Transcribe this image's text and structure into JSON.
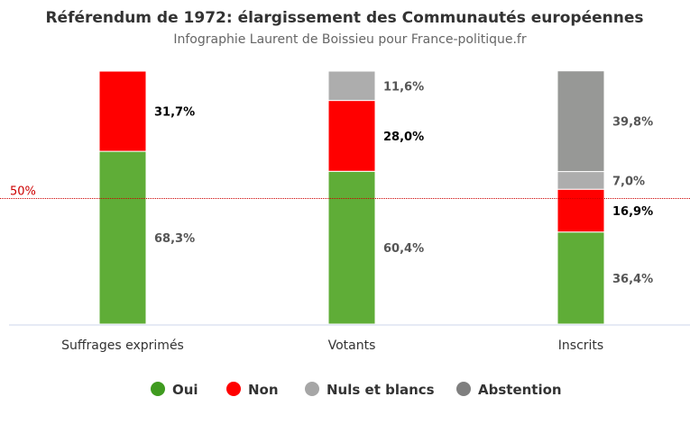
{
  "chart_data": {
    "type": "bar",
    "stacked": true,
    "title": "Référendum de 1972: élargissement des Communautés européennes",
    "subtitle": "Infographie Laurent de Boissieu pour France-politique.fr",
    "categories": [
      "Suffrages exprimés",
      "Votants",
      "Inscrits"
    ],
    "series": [
      {
        "name": "Oui",
        "color": "#5fad37",
        "legend_color": "#3f9b1f",
        "label_color": "#555555",
        "values": [
          68.3,
          60.4,
          36.4
        ],
        "labels": [
          "68,3%",
          "60,4%",
          "36,4%"
        ]
      },
      {
        "name": "Non",
        "color": "#ff0000",
        "legend_color": "#ff0000",
        "label_color": "#000000",
        "values": [
          31.7,
          28.0,
          16.9
        ],
        "labels": [
          "31,7%",
          "28,0%",
          "16,9%"
        ]
      },
      {
        "name": "Nuls et blancs",
        "color": "#adadad",
        "legend_color": "#a6a6a6",
        "label_color": "#555555",
        "values": [
          0,
          11.6,
          7.0
        ],
        "labels": [
          "",
          "11,6%",
          "7,0%"
        ]
      },
      {
        "name": "Abstention",
        "color": "#979896",
        "legend_color": "#7f7f7f",
        "label_color": "#555555",
        "values": [
          0,
          0,
          39.8
        ],
        "labels": [
          "",
          "",
          "39,8%"
        ]
      }
    ],
    "ylim": [
      0,
      100
    ],
    "reference_line": {
      "value": 50,
      "label": "50%",
      "color": "#cc0000"
    },
    "legend_position": "bottom",
    "grid": false
  }
}
